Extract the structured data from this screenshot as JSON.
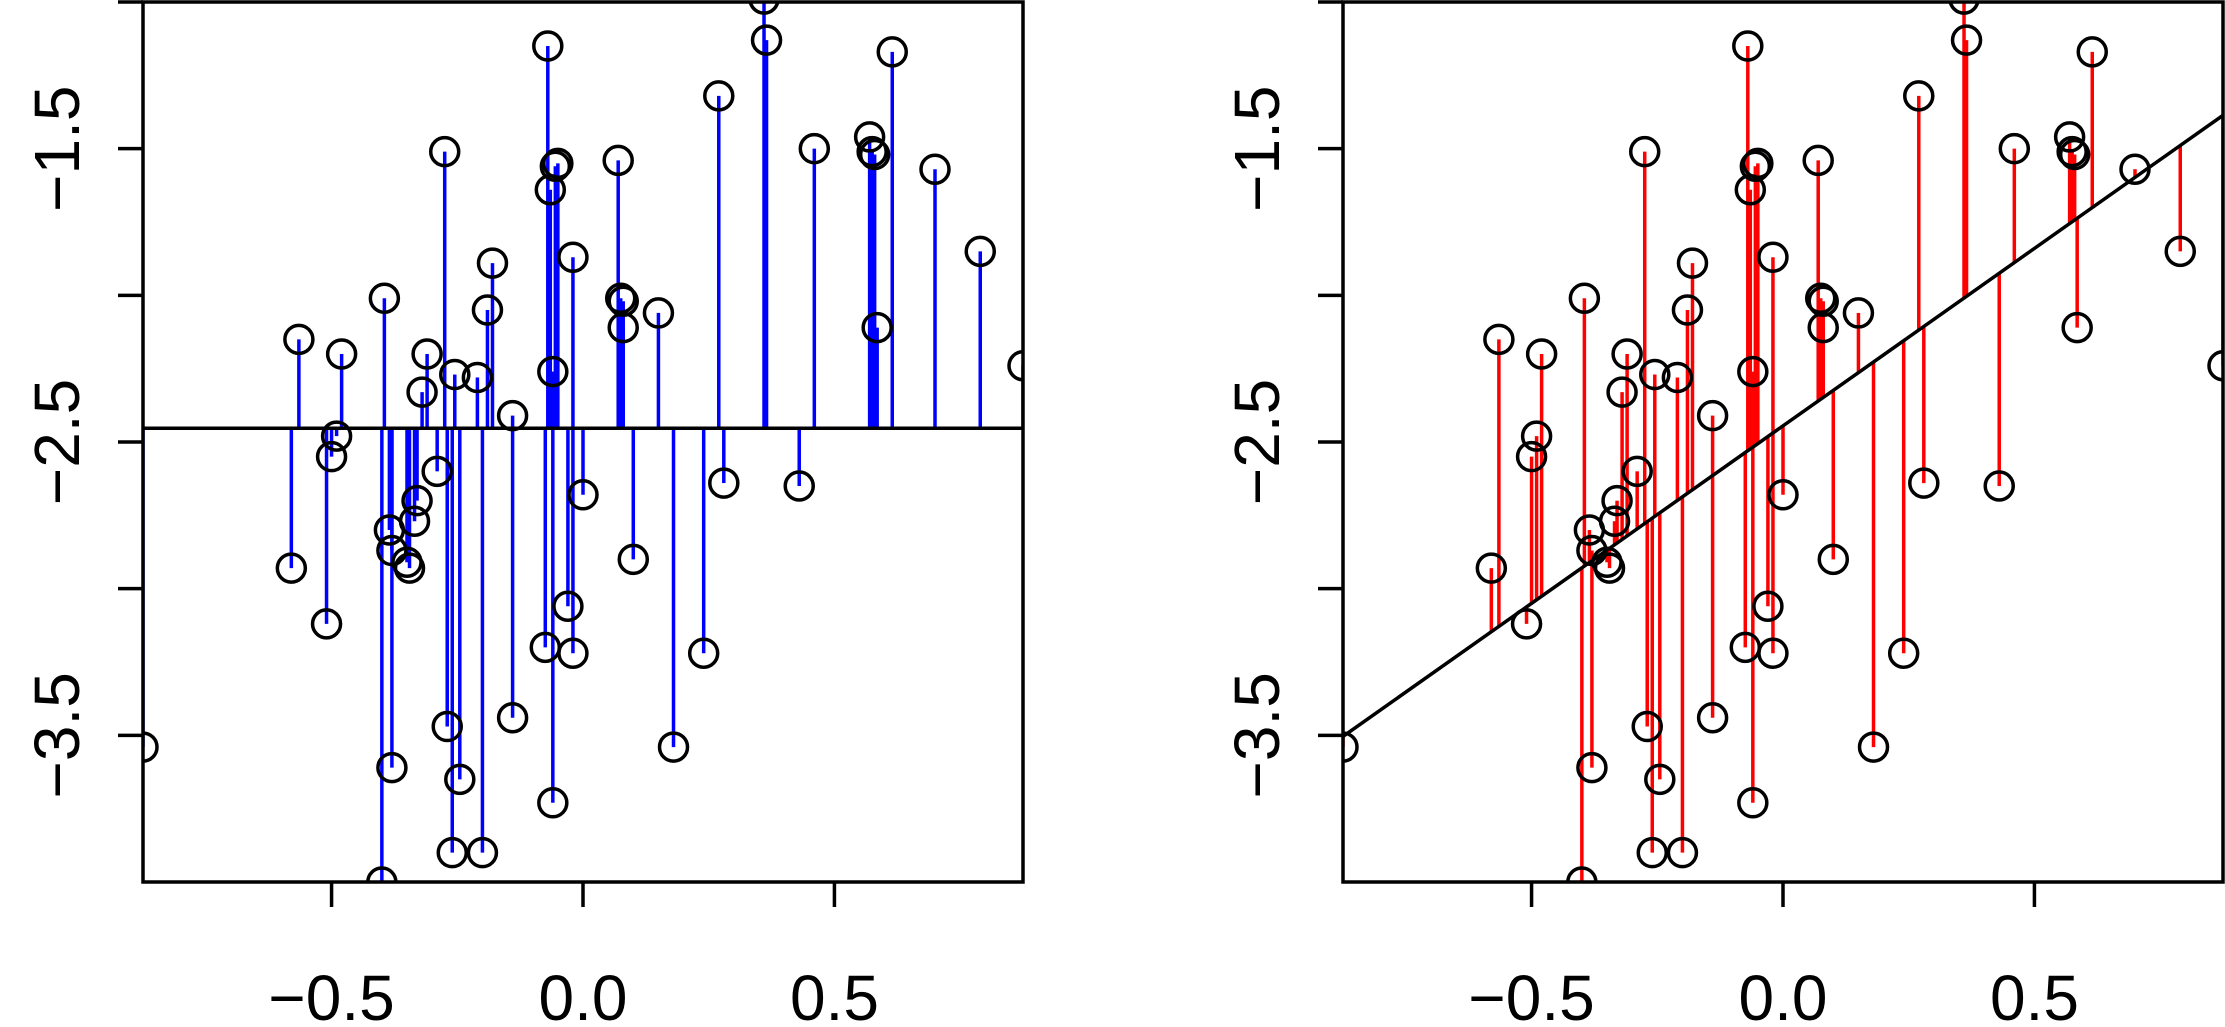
{
  "chart_data": [
    {
      "type": "scatter",
      "panel": "left",
      "xlim": [
        -0.875,
        0.875
      ],
      "ylim": [
        -4.0,
        -1.0
      ],
      "x_ticks": [
        -0.5,
        0.0,
        0.5
      ],
      "x_tick_labels": [
        "−0.5",
        "0.0",
        "0.5"
      ],
      "y_ticks": [
        -3.5,
        -3.0,
        -2.5,
        -2.0,
        -1.5,
        -1.0
      ],
      "y_tick_labels": [
        "−3.5",
        "",
        "−2.5",
        "",
        "−1.5",
        ""
      ],
      "fit_line": {
        "intercept": -2.453,
        "slope": 0.0
      },
      "residual_color": "#0000ff",
      "grid": false
    },
    {
      "type": "scatter",
      "panel": "right",
      "xlim": [
        -0.875,
        0.875
      ],
      "ylim": [
        -4.0,
        -1.0
      ],
      "x_ticks": [
        -0.5,
        0.0,
        0.5
      ],
      "x_tick_labels": [
        "−0.5",
        "0.0",
        "0.5"
      ],
      "y_ticks": [
        -3.5,
        -3.0,
        -2.5,
        -2.0,
        -1.5,
        -1.0
      ],
      "y_tick_labels": [
        "−3.5",
        "",
        "−2.5",
        "",
        "−1.5",
        ""
      ],
      "fit_line": {
        "intercept": -2.445,
        "slope": 1.21
      },
      "residual_color": "#ff0000",
      "grid": false
    }
  ],
  "points": {
    "x": [
      -0.875,
      -0.58,
      -0.565,
      -0.51,
      -0.5,
      -0.49,
      -0.48,
      -0.4,
      -0.395,
      -0.385,
      -0.38,
      -0.38,
      -0.35,
      -0.345,
      -0.335,
      -0.33,
      -0.32,
      -0.31,
      -0.29,
      -0.275,
      -0.27,
      -0.26,
      -0.255,
      -0.245,
      -0.21,
      -0.2,
      -0.19,
      -0.18,
      -0.14,
      -0.14,
      -0.075,
      -0.07,
      -0.065,
      -0.06,
      -0.06,
      -0.055,
      -0.05,
      -0.03,
      -0.02,
      -0.02,
      0.0,
      0.07,
      0.075,
      0.08,
      0.08,
      0.1,
      0.15,
      0.18,
      0.24,
      0.27,
      0.28,
      0.36,
      0.365,
      0.43,
      0.46,
      0.57,
      0.575,
      0.58,
      0.585,
      0.615,
      0.7,
      0.79,
      0.875
    ],
    "y": [
      -3.54,
      -2.93,
      -2.15,
      -3.12,
      -2.55,
      -2.48,
      -2.2,
      -4.0,
      -2.01,
      -2.8,
      -3.61,
      -2.87,
      -2.91,
      -2.93,
      -2.77,
      -2.7,
      -2.33,
      -2.2,
      -2.6,
      -1.51,
      -3.47,
      -3.9,
      -2.27,
      -3.65,
      -2.28,
      -3.9,
      -2.05,
      -1.89,
      -2.41,
      -3.44,
      -3.2,
      -1.15,
      -1.64,
      -2.26,
      -3.73,
      -1.56,
      -1.55,
      -3.06,
      -1.87,
      -3.22,
      -2.68,
      -1.54,
      -2.01,
      -2.11,
      -2.02,
      -2.9,
      -2.06,
      -3.54,
      -3.22,
      -1.32,
      -2.64,
      -0.99,
      -1.13,
      -2.65,
      -1.5,
      -1.46,
      -1.51,
      -1.52,
      -2.11,
      -1.17,
      -1.57,
      -1.85,
      -2.24
    ]
  }
}
